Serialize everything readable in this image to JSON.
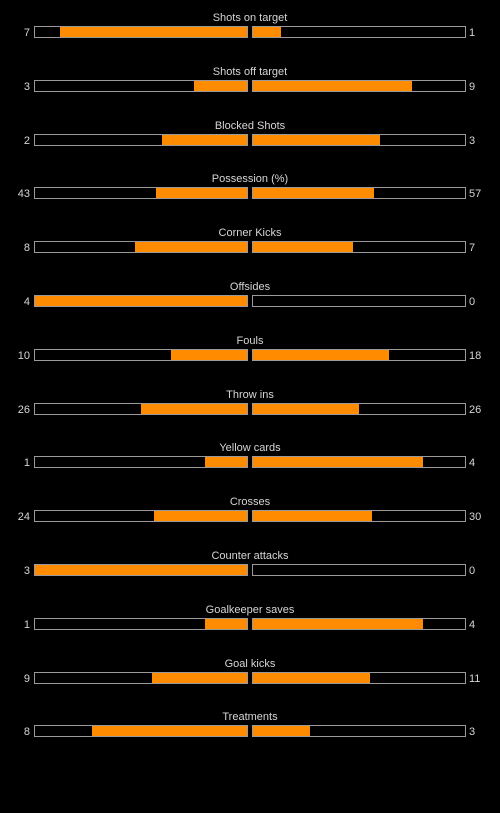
{
  "colors": {
    "background": "#000000",
    "bar_fill": "#ff8c00",
    "bar_border": "#9a9a9a",
    "text": "#d6d6d6"
  },
  "stats": [
    {
      "label": "Shots on target",
      "home": "7",
      "away": "1",
      "home_fill": 0.88,
      "away_fill": 0.13
    },
    {
      "label": "Shots off target",
      "home": "3",
      "away": "9",
      "home_fill": 0.25,
      "away_fill": 0.75
    },
    {
      "label": "Blocked Shots",
      "home": "2",
      "away": "3",
      "home_fill": 0.4,
      "away_fill": 0.6
    },
    {
      "label": "Possession (%)",
      "home": "43",
      "away": "57",
      "home_fill": 0.43,
      "away_fill": 0.57
    },
    {
      "label": "Corner Kicks",
      "home": "8",
      "away": "7",
      "home_fill": 0.53,
      "away_fill": 0.47
    },
    {
      "label": "Offsides",
      "home": "4",
      "away": "0",
      "home_fill": 1.0,
      "away_fill": 0.0
    },
    {
      "label": "Fouls",
      "home": "10",
      "away": "18",
      "home_fill": 0.36,
      "away_fill": 0.64
    },
    {
      "label": "Throw ins",
      "home": "26",
      "away": "26",
      "home_fill": 0.5,
      "away_fill": 0.5
    },
    {
      "label": "Yellow cards",
      "home": "1",
      "away": "4",
      "home_fill": 0.2,
      "away_fill": 0.8
    },
    {
      "label": "Crosses",
      "home": "24",
      "away": "30",
      "home_fill": 0.44,
      "away_fill": 0.56
    },
    {
      "label": "Counter attacks",
      "home": "3",
      "away": "0",
      "home_fill": 1.0,
      "away_fill": 0.0
    },
    {
      "label": "Goalkeeper saves",
      "home": "1",
      "away": "4",
      "home_fill": 0.2,
      "away_fill": 0.8
    },
    {
      "label": "Goal kicks",
      "home": "9",
      "away": "11",
      "home_fill": 0.45,
      "away_fill": 0.55
    },
    {
      "label": "Treatments",
      "home": "8",
      "away": "3",
      "home_fill": 0.73,
      "away_fill": 0.27
    }
  ]
}
